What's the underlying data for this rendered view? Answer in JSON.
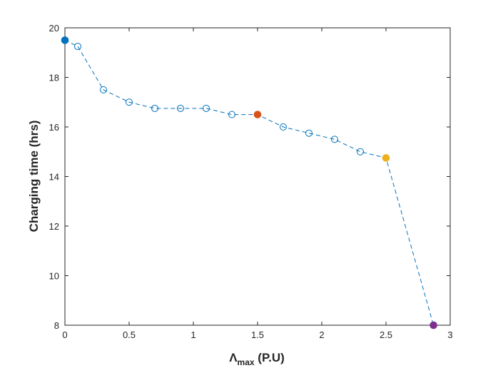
{
  "chart_data": {
    "type": "line",
    "title": "",
    "xlabel_main": "Λ",
    "xlabel_sub": "max",
    "xlabel_unit": " (P.U)",
    "ylabel": "Charging time (hrs)",
    "xlim": [
      0,
      3
    ],
    "ylim": [
      8,
      20
    ],
    "xticks": [
      0,
      0.5,
      1,
      1.5,
      2,
      2.5,
      3
    ],
    "xtick_labels": [
      "0",
      "0.5",
      "1",
      "1.5",
      "2",
      "2.5",
      "3"
    ],
    "yticks": [
      8,
      10,
      12,
      14,
      16,
      18,
      20
    ],
    "ytick_labels": [
      "8",
      "10",
      "12",
      "14",
      "16",
      "18",
      "20"
    ],
    "grid": false,
    "series": [
      {
        "x": [
          0,
          0.1,
          0.3,
          0.5,
          0.7,
          0.9,
          1.1,
          1.3,
          1.5,
          1.7,
          1.9,
          2.1,
          2.3,
          2.5,
          2.87
        ],
        "y": [
          19.5,
          19.25,
          17.5,
          17.0,
          16.75,
          16.75,
          16.75,
          16.5,
          16.5,
          16.0,
          15.75,
          15.5,
          15.0,
          14.75,
          8.0
        ],
        "line_color": "#0072BD",
        "line_style": "dashed",
        "marker": "open-circle"
      }
    ],
    "highlighted_points": [
      {
        "x": 0,
        "y": 19.5,
        "color": "#0072BD"
      },
      {
        "x": 1.5,
        "y": 16.5,
        "color": "#D95319"
      },
      {
        "x": 2.5,
        "y": 14.75,
        "color": "#EDB120"
      },
      {
        "x": 2.87,
        "y": 8.0,
        "color": "#7E2F8E"
      }
    ]
  }
}
